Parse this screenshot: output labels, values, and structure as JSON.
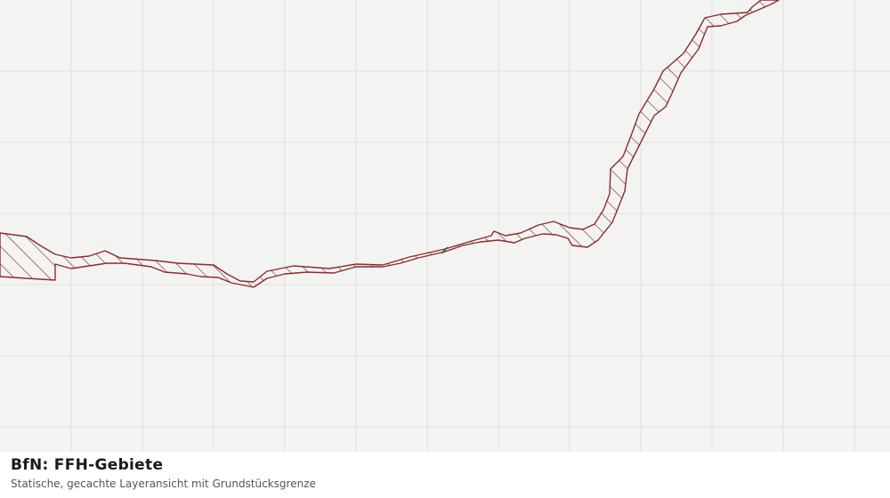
{
  "footer": {
    "title": "BfN: FFH-Gebiete",
    "subtitle": "Statische, gecachte Layeransicht mit Grundstücksgrenze"
  }
}
